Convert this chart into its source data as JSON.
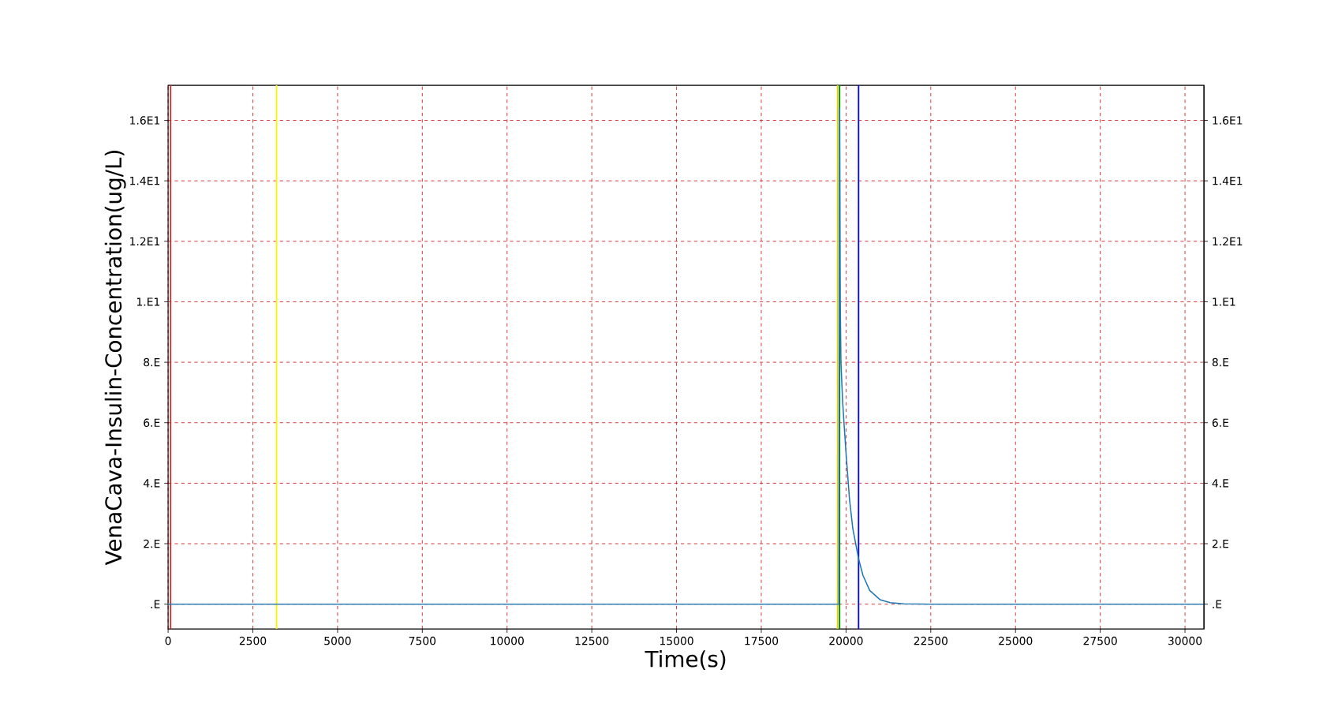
{
  "chart_data": {
    "type": "line",
    "xlabel": "Time(s)",
    "ylabel": "VenaCava-Insulin-Concentration(ug/L)",
    "series": [
      {
        "color": "#1f77b4",
        "x": [
          0,
          5000,
          10000,
          15000,
          19790,
          19810,
          19830,
          19850,
          19900,
          19940,
          20000,
          20100,
          20200,
          20370,
          20500,
          20700,
          21000,
          21300,
          21700,
          22500,
          25000,
          30560
        ],
        "values": [
          0,
          0,
          0,
          0,
          0,
          16.4,
          10,
          8,
          6.7,
          6,
          5,
          3.5,
          2.5,
          1.5,
          0.95,
          0.45,
          0.15,
          0.05,
          0.01,
          0,
          0,
          0
        ]
      }
    ],
    "xlim": [
      0,
      30560
    ],
    "ylim": [
      -0.82,
      17.16
    ],
    "y2lim": [
      -0.82,
      17.16
    ],
    "xticks": [
      0,
      2500,
      5000,
      7500,
      10000,
      12500,
      15000,
      17500,
      20000,
      22500,
      25000,
      27500,
      30000
    ],
    "yticks": [
      {
        "value": 0,
        "label": ".E"
      },
      {
        "value": 2,
        "label": "2.E"
      },
      {
        "value": 4,
        "label": "4.E"
      },
      {
        "value": 6,
        "label": "6.E"
      },
      {
        "value": 8,
        "label": "8.E"
      },
      {
        "value": 10,
        "label": "1.E1"
      },
      {
        "value": 12,
        "label": "1.2E1"
      },
      {
        "value": 14,
        "label": "1.4E1"
      },
      {
        "value": 16,
        "label": "1.6E1"
      }
    ],
    "y2ticks": [
      {
        "value": 0,
        "label": ".E"
      },
      {
        "value": 2,
        "label": "2.E"
      },
      {
        "value": 4,
        "label": "4.E"
      },
      {
        "value": 6,
        "label": "6.E"
      },
      {
        "value": 8,
        "label": "8.E"
      },
      {
        "value": 10,
        "label": "1.E1"
      },
      {
        "value": 12,
        "label": "1.2E1"
      },
      {
        "value": 14,
        "label": "1.4E1"
      },
      {
        "value": 16,
        "label": "1.6E1"
      }
    ],
    "grid": true,
    "line_style": "solid",
    "marker": "none",
    "ref_lines": [
      {
        "axis": "x",
        "value": 75,
        "color": "#d62020"
      },
      {
        "axis": "x",
        "value": 3200,
        "color": "#f5f500"
      },
      {
        "axis": "x",
        "value": 19750,
        "color": "#e0d000"
      },
      {
        "axis": "x",
        "value": 19810,
        "color": "#008000"
      },
      {
        "axis": "x",
        "value": 20370,
        "color": "#0000ff"
      }
    ]
  }
}
